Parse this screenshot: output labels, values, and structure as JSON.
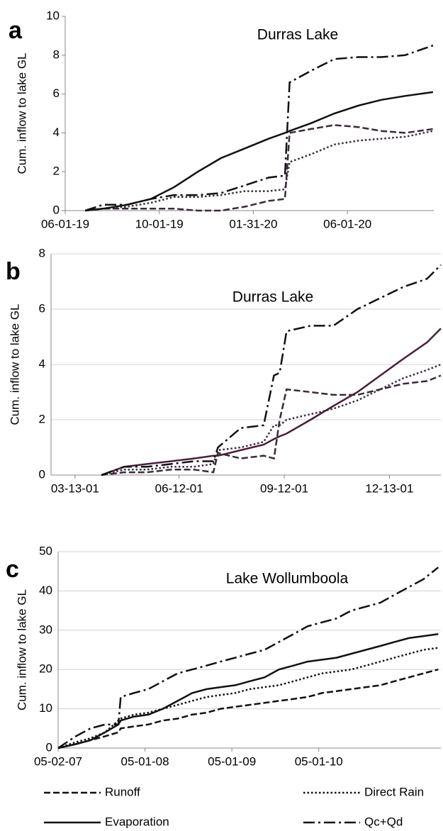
{
  "chart_data": [
    {
      "type": "line",
      "panel": "a",
      "title": "Durras Lake",
      "ylabel": "Cum. inflow to lake  GL",
      "grid": false,
      "x": [
        "2019-06-27",
        "2019-07-20",
        "2019-08-20",
        "2019-09-20",
        "2019-10-20",
        "2019-11-20",
        "2019-12-20",
        "2020-01-20",
        "2020-02-20",
        "2020-03-12",
        "2020-03-18",
        "2020-04-15",
        "2020-05-15",
        "2020-06-15",
        "2020-07-15",
        "2020-08-15",
        "2020-09-20"
      ],
      "xlim": [
        "2019-06-01",
        "2020-09-21"
      ],
      "xticks": [
        {
          "value": "2019-06-01",
          "label": "06-01-19"
        },
        {
          "value": "2019-10-01",
          "label": "10-01-19"
        },
        {
          "value": "2020-01-31",
          "label": "01-31-20"
        },
        {
          "value": "2020-06-01",
          "label": "06-01-20"
        }
      ],
      "ylim": [
        0,
        10
      ],
      "yticks": [
        0,
        2,
        4,
        6,
        8,
        10
      ],
      "series": [
        {
          "name": "Runoff",
          "style": "dashed",
          "color": "#3a2a3a",
          "values": [
            0,
            0.1,
            0.1,
            0.1,
            0.1,
            0,
            0,
            0.2,
            0.5,
            0.6,
            4.0,
            4.2,
            4.4,
            4.3,
            4.1,
            4.0,
            4.2
          ]
        },
        {
          "name": "Direct Rain",
          "style": "dotted",
          "color": "#3a2a3a",
          "values": [
            0,
            0.1,
            0.2,
            0.4,
            0.7,
            0.7,
            0.8,
            1.0,
            1.0,
            1.1,
            2.5,
            2.9,
            3.4,
            3.6,
            3.7,
            3.8,
            4.1
          ]
        },
        {
          "name": "Evaporation",
          "style": "solid",
          "color": "#111111",
          "values": [
            0,
            0.1,
            0.3,
            0.6,
            1.2,
            2.0,
            2.7,
            3.2,
            3.7,
            4.0,
            4.1,
            4.5,
            5.0,
            5.4,
            5.7,
            5.9,
            6.1
          ]
        },
        {
          "name": "Qc+Qd",
          "style": "dashdot",
          "color": "#111111",
          "values": [
            0,
            0.3,
            0.3,
            0.6,
            0.8,
            0.8,
            0.9,
            1.3,
            1.7,
            1.8,
            6.6,
            7.2,
            7.8,
            7.9,
            7.9,
            8.0,
            8.5
          ]
        }
      ]
    },
    {
      "type": "line",
      "panel": "b",
      "title": "Durras Lake",
      "ylabel": "Cum. inflow to lake GL",
      "grid": true,
      "x": [
        "2001-04-05",
        "2001-04-25",
        "2001-05-15",
        "2001-06-05",
        "2001-06-25",
        "2001-07-12",
        "2001-07-16",
        "2001-08-05",
        "2001-08-25",
        "2001-09-03",
        "2001-09-08",
        "2001-09-14",
        "2001-10-05",
        "2001-10-25",
        "2001-11-15",
        "2001-12-05",
        "2001-12-25",
        "2002-01-15",
        "2002-01-27"
      ],
      "xlim": [
        "2001-02-20",
        "2002-01-27"
      ],
      "xticks": [
        {
          "value": "2001-03-13",
          "label": "03-13-01"
        },
        {
          "value": "2001-06-12",
          "label": "06-12-01"
        },
        {
          "value": "2001-09-12",
          "label": "09-12-01"
        },
        {
          "value": "2001-12-13",
          "label": "12-13-01"
        }
      ],
      "ylim": [
        0,
        8
      ],
      "yticks": [
        0,
        2,
        4,
        6,
        8
      ],
      "series": [
        {
          "name": "Runoff",
          "style": "dashed",
          "color": "#3a2a3a",
          "values": [
            0,
            0.1,
            0.1,
            0.2,
            0.2,
            0.1,
            0.8,
            0.6,
            0.7,
            0.6,
            2.0,
            3.1,
            3.0,
            2.9,
            2.9,
            3.1,
            3.3,
            3.4,
            3.6
          ]
        },
        {
          "name": "Direct Rain",
          "style": "dotted",
          "color": "#3a2a3a",
          "values": [
            0,
            0.2,
            0.2,
            0.3,
            0.3,
            0.4,
            0.9,
            1.0,
            1.2,
            1.8,
            1.8,
            2.0,
            2.2,
            2.4,
            2.7,
            3.1,
            3.5,
            3.8,
            4.0
          ]
        },
        {
          "name": "Evaporation",
          "style": "solid",
          "color": "#4a1f3a",
          "values": [
            0,
            0.3,
            0.4,
            0.5,
            0.6,
            0.7,
            0.7,
            0.9,
            1.1,
            1.3,
            1.4,
            1.5,
            2.0,
            2.5,
            3.0,
            3.6,
            4.2,
            4.8,
            5.3
          ]
        },
        {
          "name": "Qc+Qd",
          "style": "dashdot",
          "color": "#111111",
          "values": [
            0,
            0.3,
            0.3,
            0.4,
            0.5,
            0.5,
            1.0,
            1.7,
            1.8,
            3.6,
            3.7,
            5.2,
            5.4,
            5.4,
            6.0,
            6.4,
            6.8,
            7.1,
            7.6
          ]
        }
      ]
    },
    {
      "type": "line",
      "panel": "c",
      "title": "Lake Wollumboola",
      "ylabel": "Cum. inflow to lake  GL",
      "grid": true,
      "x": [
        "2007-05-02",
        "2007-07-15",
        "2007-09-15",
        "2007-11-15",
        "2008-01-10",
        "2008-01-20",
        "2008-03-15",
        "2008-05-15",
        "2008-07-15",
        "2008-09-15",
        "2008-11-15",
        "2009-01-15",
        "2009-03-15",
        "2009-05-15",
        "2009-07-15",
        "2009-09-15",
        "2009-11-15",
        "2010-01-15",
        "2010-03-15",
        "2010-05-15",
        "2010-07-15",
        "2010-09-15",
        "2010-11-15",
        "2011-01-15",
        "2011-03-15",
        "2011-05-15",
        "2011-07-15",
        "2011-09-15"
      ],
      "xlim": [
        "2007-05-02",
        "2011-09-26"
      ],
      "xticks": [
        {
          "value": "2007-05-02",
          "label": "05-02-07"
        },
        {
          "value": "2008-05-01",
          "label": "05-01-08"
        },
        {
          "value": "2009-05-01",
          "label": "05-01-09"
        },
        {
          "value": "2010-05-01",
          "label": "05-01-10"
        }
      ],
      "ylim": [
        0,
        50
      ],
      "yticks": [
        0,
        10,
        20,
        30,
        40,
        50
      ],
      "series": [
        {
          "name": "Runoff",
          "style": "dashed",
          "color": "#111111",
          "values": [
            0,
            1,
            2,
            3,
            4,
            5,
            5.5,
            6,
            7,
            7.5,
            8.5,
            9,
            10,
            10.5,
            11,
            11.5,
            12,
            12.5,
            13,
            14,
            14.5,
            15,
            15.5,
            16,
            17,
            18,
            19,
            20
          ]
        },
        {
          "name": "Direct Rain",
          "style": "dotted",
          "color": "#111111",
          "values": [
            0,
            1.5,
            2.5,
            4,
            7,
            7.5,
            8.5,
            9,
            10,
            11,
            12,
            13,
            13.5,
            14,
            15,
            15.5,
            16,
            17,
            18,
            19,
            19.5,
            20,
            21,
            22,
            23,
            24,
            25,
            25.5
          ]
        },
        {
          "name": "Evaporation",
          "style": "solid",
          "color": "#111111",
          "values": [
            0,
            1,
            2,
            4,
            6,
            7,
            8,
            8.5,
            10,
            12,
            14,
            15,
            15.5,
            16,
            17,
            18,
            20,
            21,
            22,
            22.5,
            23,
            24,
            25,
            26,
            27,
            28,
            28.5,
            29
          ]
        },
        {
          "name": "Qc+Qd",
          "style": "dashdot",
          "color": "#111111",
          "values": [
            0,
            3,
            5,
            6,
            6,
            13,
            14,
            15,
            17,
            19,
            20,
            21,
            22,
            23,
            24,
            25,
            27,
            29,
            31,
            32,
            33,
            35,
            36,
            37,
            39,
            41,
            43,
            46
          ]
        }
      ]
    }
  ]
}
